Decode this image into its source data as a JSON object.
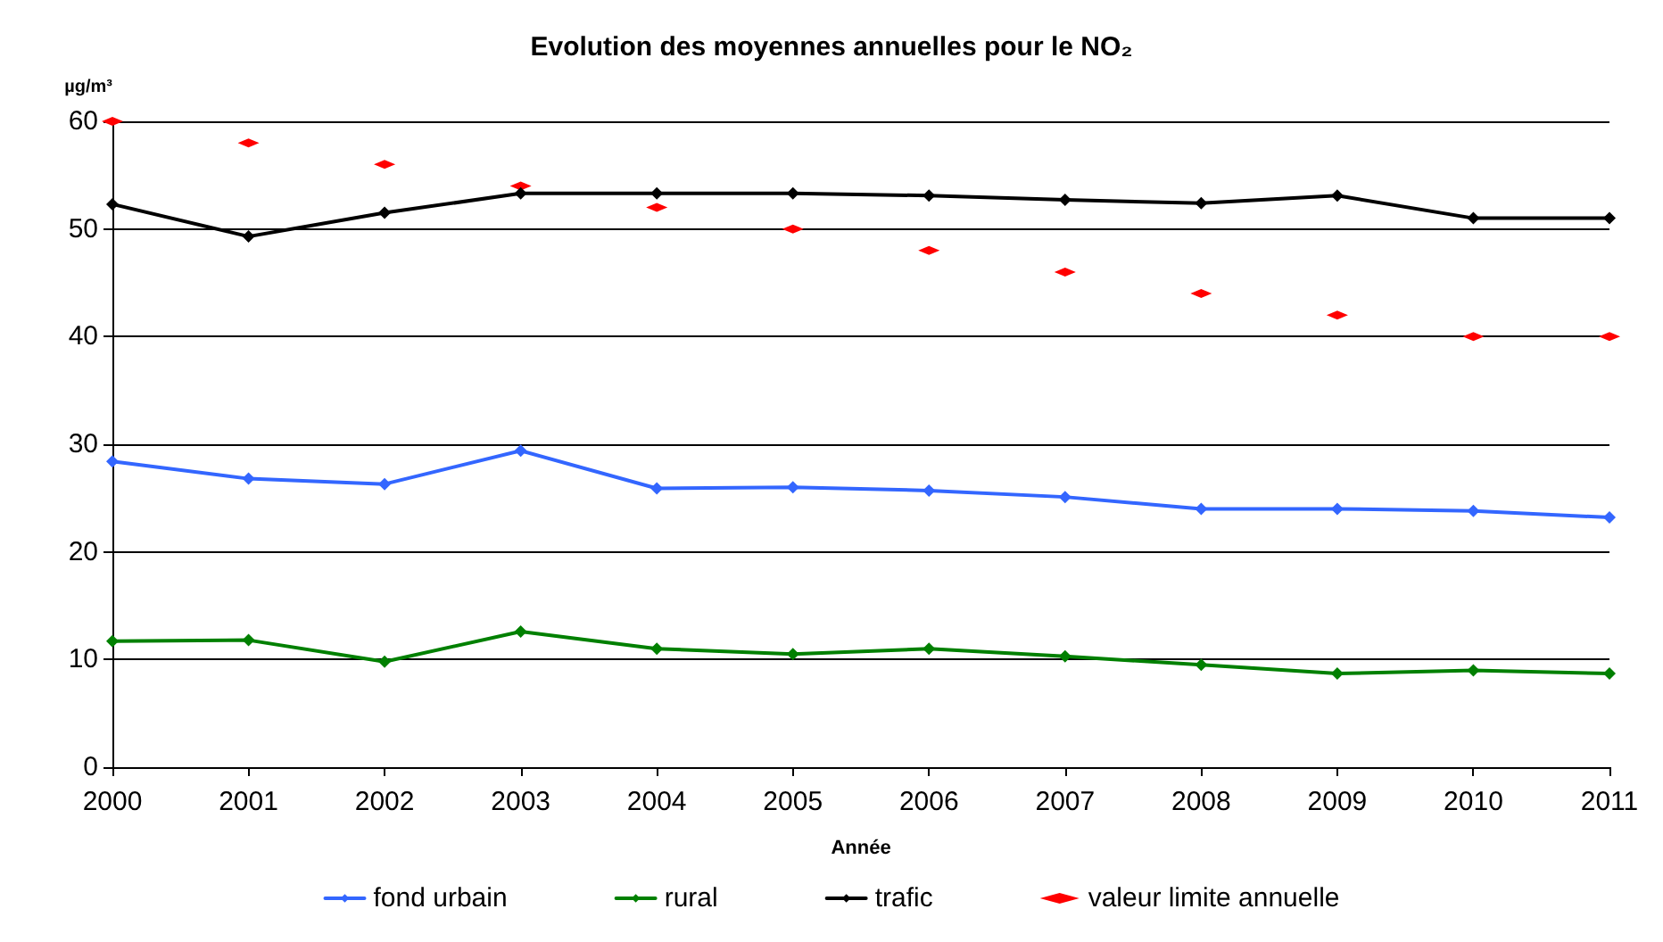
{
  "chart_data": {
    "type": "line",
    "title": "Evolution des moyennes annuelles pour le NO₂",
    "xlabel": "Année",
    "ylabel": "µg/m³",
    "categories": [
      "2000",
      "2001",
      "2002",
      "2003",
      "2004",
      "2005",
      "2006",
      "2007",
      "2008",
      "2009",
      "2010",
      "2011"
    ],
    "series": [
      {
        "name": "fond urbain",
        "color": "#3366ff",
        "values": [
          28.4,
          26.8,
          26.3,
          29.4,
          25.9,
          26.0,
          25.7,
          25.1,
          24.0,
          24.0,
          23.8,
          23.2
        ]
      },
      {
        "name": "rural",
        "color": "#008000",
        "values": [
          11.7,
          11.8,
          9.8,
          12.6,
          11.0,
          10.5,
          11.0,
          10.3,
          9.5,
          8.7,
          9.0,
          8.7
        ]
      },
      {
        "name": "trafic",
        "color": "#000000",
        "values": [
          52.3,
          49.3,
          51.5,
          53.3,
          53.3,
          53.3,
          53.1,
          52.7,
          52.4,
          53.1,
          51.0,
          51.0
        ]
      },
      {
        "name": "valeur limite annuelle",
        "type": "scatter",
        "color": "#ff0000",
        "values": [
          60,
          58,
          56,
          54,
          52,
          50,
          48,
          46,
          44,
          42,
          40,
          40
        ]
      }
    ],
    "ylim": [
      0,
      60
    ],
    "yticks": [
      0,
      10,
      20,
      30,
      40,
      50,
      60
    ],
    "grid": "y",
    "legend": "bottom",
    "marker": "diamond",
    "line_style": "solid"
  }
}
